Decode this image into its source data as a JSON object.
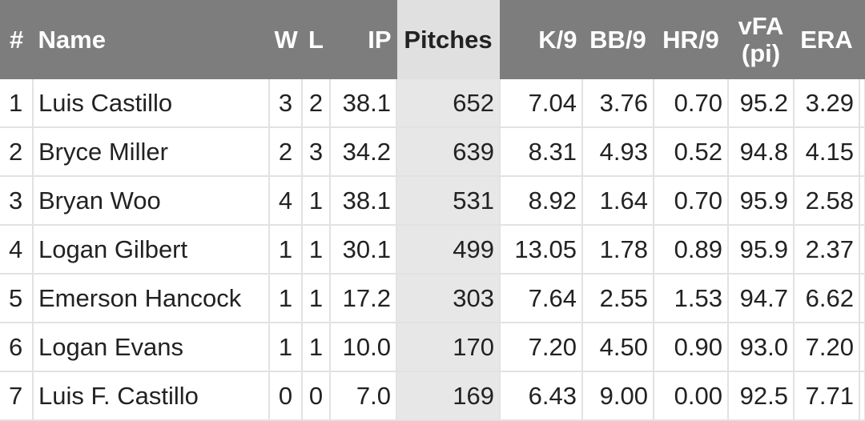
{
  "table": {
    "columns": [
      {
        "key": "rank",
        "label": "#"
      },
      {
        "key": "name",
        "label": "Name"
      },
      {
        "key": "w",
        "label": "W"
      },
      {
        "key": "l",
        "label": "L"
      },
      {
        "key": "ip",
        "label": "IP"
      },
      {
        "key": "pitches",
        "label": "Pitches"
      },
      {
        "key": "k9",
        "label": "K/9"
      },
      {
        "key": "bb9",
        "label": "BB/9"
      },
      {
        "key": "hr9",
        "label": "HR/9"
      },
      {
        "key": "vfa",
        "label": "vFA (pi)"
      },
      {
        "key": "era",
        "label": "ERA"
      }
    ],
    "vfa_label_line1": "vFA",
    "vfa_label_line2": "(pi)",
    "sorted_column": "pitches",
    "rows": [
      {
        "rank": "1",
        "name": "Luis Castillo",
        "w": "3",
        "l": "2",
        "ip": "38.1",
        "pitches": "652",
        "k9": "7.04",
        "bb9": "3.76",
        "hr9": "0.70",
        "vfa": "95.2",
        "era": "3.29"
      },
      {
        "rank": "2",
        "name": "Bryce Miller",
        "w": "2",
        "l": "3",
        "ip": "34.2",
        "pitches": "639",
        "k9": "8.31",
        "bb9": "4.93",
        "hr9": "0.52",
        "vfa": "94.8",
        "era": "4.15"
      },
      {
        "rank": "3",
        "name": "Bryan Woo",
        "w": "4",
        "l": "1",
        "ip": "38.1",
        "pitches": "531",
        "k9": "8.92",
        "bb9": "1.64",
        "hr9": "0.70",
        "vfa": "95.9",
        "era": "2.58"
      },
      {
        "rank": "4",
        "name": "Logan Gilbert",
        "w": "1",
        "l": "1",
        "ip": "30.1",
        "pitches": "499",
        "k9": "13.05",
        "bb9": "1.78",
        "hr9": "0.89",
        "vfa": "95.9",
        "era": "2.37"
      },
      {
        "rank": "5",
        "name": "Emerson Hancock",
        "w": "1",
        "l": "1",
        "ip": "17.2",
        "pitches": "303",
        "k9": "7.64",
        "bb9": "2.55",
        "hr9": "1.53",
        "vfa": "94.7",
        "era": "6.62"
      },
      {
        "rank": "6",
        "name": "Logan Evans",
        "w": "1",
        "l": "1",
        "ip": "10.0",
        "pitches": "170",
        "k9": "7.20",
        "bb9": "4.50",
        "hr9": "0.90",
        "vfa": "93.0",
        "era": "7.20"
      },
      {
        "rank": "7",
        "name": "Luis F. Castillo",
        "w": "0",
        "l": "0",
        "ip": "7.0",
        "pitches": "169",
        "k9": "6.43",
        "bb9": "9.00",
        "hr9": "0.00",
        "vfa": "92.5",
        "era": "7.71"
      }
    ]
  },
  "colors": {
    "header_bg": "#7d7d7d",
    "header_text": "#ffffff",
    "sorted_header_bg": "#e0e0e0",
    "sorted_cell_bg": "#e7e7e7",
    "grid_line": "#e2e2e2"
  }
}
